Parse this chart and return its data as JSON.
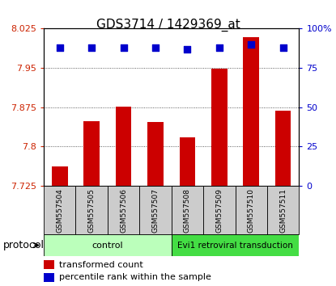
{
  "title": "GDS3714 / 1429369_at",
  "samples": [
    "GSM557504",
    "GSM557505",
    "GSM557506",
    "GSM557507",
    "GSM557508",
    "GSM557509",
    "GSM557510",
    "GSM557511"
  ],
  "transformed_counts": [
    7.762,
    7.848,
    7.876,
    7.847,
    7.817,
    7.948,
    8.008,
    7.868
  ],
  "percentile_ranks": [
    88,
    88,
    88,
    88,
    87,
    88,
    90,
    88
  ],
  "ylim_left": [
    7.725,
    8.025
  ],
  "ylim_right": [
    0,
    100
  ],
  "yticks_left": [
    7.725,
    7.8,
    7.875,
    7.95,
    8.025
  ],
  "yticks_right": [
    0,
    25,
    50,
    75,
    100
  ],
  "ytick_labels_left": [
    "7.725",
    "7.8",
    "7.875",
    "7.95",
    "8.025"
  ],
  "ytick_labels_right": [
    "0",
    "25",
    "50",
    "75",
    "100%"
  ],
  "bar_color": "#cc0000",
  "dot_color": "#0000cc",
  "left_tick_color": "#cc2200",
  "right_tick_color": "#0000cc",
  "grid_color": "#333333",
  "plot_bg": "#ffffff",
  "label_area_bg": "#cccccc",
  "control_bg": "#bbffbb",
  "evi1_bg": "#44dd44",
  "control_label": "control",
  "evi1_label": "Evi1 retroviral transduction",
  "protocol_label": "protocol",
  "legend_bar_label": "transformed count",
  "legend_dot_label": "percentile rank within the sample",
  "grid_ticks": [
    7.8,
    7.875,
    7.95
  ]
}
